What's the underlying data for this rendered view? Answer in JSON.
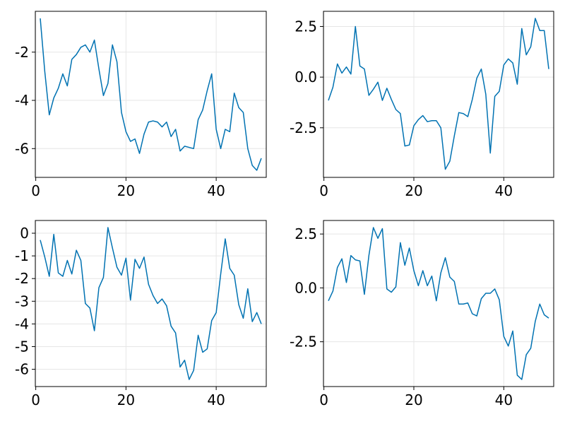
{
  "colors": {
    "line": "#0072b2",
    "grid": "#e6e6e6",
    "frame": "#000000",
    "background": "#ffffff"
  },
  "chart_data": [
    {
      "type": "line",
      "grid": true,
      "xlim": [
        1,
        50
      ],
      "ylim": [
        -6.9,
        -0.6
      ],
      "xticks": [
        0,
        20,
        40
      ],
      "xtick_labels": [
        "0",
        "20",
        "40"
      ],
      "yticks": [
        -2,
        -4,
        -6
      ],
      "ytick_labels": [
        "-2",
        "-4",
        "-6"
      ],
      "x": [
        1,
        2,
        3,
        4,
        5,
        6,
        7,
        8,
        9,
        10,
        11,
        12,
        13,
        14,
        15,
        16,
        17,
        18,
        19,
        20,
        21,
        22,
        23,
        24,
        25,
        26,
        27,
        28,
        29,
        30,
        31,
        32,
        33,
        34,
        35,
        36,
        37,
        38,
        39,
        40,
        41,
        42,
        43,
        44,
        45,
        46,
        47,
        48,
        49,
        50
      ],
      "series": [
        {
          "values": [
            -0.6,
            -2.8,
            -4.6,
            -3.9,
            -3.5,
            -2.9,
            -3.4,
            -2.3,
            -2.1,
            -1.8,
            -1.7,
            -2.0,
            -1.5,
            -2.7,
            -3.8,
            -3.3,
            -1.7,
            -2.4,
            -4.5,
            -5.3,
            -5.7,
            -5.6,
            -6.2,
            -5.4,
            -4.9,
            -4.85,
            -4.9,
            -5.1,
            -4.9,
            -5.5,
            -5.2,
            -6.1,
            -5.9,
            -5.95,
            -6.0,
            -4.8,
            -4.4,
            -3.6,
            -2.9,
            -5.2,
            -6.0,
            -5.2,
            -5.3,
            -3.7,
            -4.3,
            -4.5,
            -6.0,
            -6.7,
            -6.9,
            -6.4
          ]
        }
      ]
    },
    {
      "type": "line",
      "grid": true,
      "xlim": [
        1,
        50
      ],
      "ylim": [
        -4.6,
        2.9
      ],
      "xticks": [
        0,
        20,
        40
      ],
      "xtick_labels": [
        "0",
        "20",
        "40"
      ],
      "yticks": [
        2.5,
        0.0,
        -2.5
      ],
      "ytick_labels": [
        "2.5",
        "0.0",
        "-2.5"
      ],
      "x": [
        1,
        2,
        3,
        4,
        5,
        6,
        7,
        8,
        9,
        10,
        11,
        12,
        13,
        14,
        15,
        16,
        17,
        18,
        19,
        20,
        21,
        22,
        23,
        24,
        25,
        26,
        27,
        28,
        29,
        30,
        31,
        32,
        33,
        34,
        35,
        36,
        37,
        38,
        39,
        40,
        41,
        42,
        43,
        44,
        45,
        46,
        47,
        48,
        49,
        50
      ],
      "series": [
        {
          "values": [
            -1.15,
            -0.5,
            0.65,
            0.2,
            0.5,
            0.15,
            2.5,
            0.55,
            0.4,
            -0.9,
            -0.6,
            -0.25,
            -1.15,
            -0.55,
            -1.1,
            -1.6,
            -1.8,
            -3.4,
            -3.35,
            -2.4,
            -2.1,
            -1.9,
            -2.2,
            -2.15,
            -2.15,
            -2.5,
            -4.55,
            -4.15,
            -2.9,
            -1.75,
            -1.8,
            -1.95,
            -1.1,
            -0.05,
            0.4,
            -0.85,
            -3.75,
            -0.95,
            -0.7,
            0.6,
            0.9,
            0.7,
            -0.35,
            2.4,
            1.1,
            1.5,
            2.9,
            2.3,
            2.3,
            0.4
          ]
        }
      ]
    },
    {
      "type": "line",
      "grid": true,
      "xlim": [
        1,
        50
      ],
      "ylim": [
        -6.45,
        0.25
      ],
      "xticks": [
        0,
        20,
        40
      ],
      "xtick_labels": [
        "0",
        "20",
        "40"
      ],
      "yticks": [
        0,
        -1,
        -2,
        -3,
        -4,
        -5,
        -6
      ],
      "ytick_labels": [
        "0",
        "-1",
        "-2",
        "-3",
        "-4",
        "-5",
        "-6"
      ],
      "x": [
        1,
        2,
        3,
        4,
        5,
        6,
        7,
        8,
        9,
        10,
        11,
        12,
        13,
        14,
        15,
        16,
        17,
        18,
        19,
        20,
        21,
        22,
        23,
        24,
        25,
        26,
        27,
        28,
        29,
        30,
        31,
        32,
        33,
        34,
        35,
        36,
        37,
        38,
        39,
        40,
        41,
        42,
        43,
        44,
        45,
        46,
        47,
        48,
        49,
        50
      ],
      "series": [
        {
          "values": [
            -0.3,
            -1.05,
            -1.9,
            -0.05,
            -1.75,
            -1.9,
            -1.2,
            -1.8,
            -0.75,
            -1.2,
            -3.1,
            -3.3,
            -4.3,
            -2.4,
            -1.95,
            0.25,
            -0.65,
            -1.5,
            -1.85,
            -1.1,
            -2.95,
            -1.15,
            -1.55,
            -1.05,
            -2.25,
            -2.75,
            -3.1,
            -2.9,
            -3.2,
            -4.1,
            -4.4,
            -5.9,
            -5.6,
            -6.45,
            -6.05,
            -4.5,
            -5.25,
            -5.1,
            -3.85,
            -3.5,
            -1.8,
            -0.25,
            -1.55,
            -1.85,
            -3.15,
            -3.75,
            -2.45,
            -3.9,
            -3.5,
            -4.0
          ]
        }
      ]
    },
    {
      "type": "line",
      "grid": true,
      "xlim": [
        1,
        50
      ],
      "ylim": [
        -4.25,
        2.8
      ],
      "xticks": [
        0,
        20,
        40
      ],
      "xtick_labels": [
        "0",
        "20",
        "40"
      ],
      "yticks": [
        2.5,
        0.0,
        -2.5
      ],
      "ytick_labels": [
        "2.5",
        "0.0",
        "-2.5"
      ],
      "x": [
        1,
        2,
        3,
        4,
        5,
        6,
        7,
        8,
        9,
        10,
        11,
        12,
        13,
        14,
        15,
        16,
        17,
        18,
        19,
        20,
        21,
        22,
        23,
        24,
        25,
        26,
        27,
        28,
        29,
        30,
        31,
        32,
        33,
        34,
        35,
        36,
        37,
        38,
        39,
        40,
        41,
        42,
        43,
        44,
        45,
        46,
        47,
        48,
        49,
        50
      ],
      "series": [
        {
          "values": [
            -0.6,
            -0.15,
            0.95,
            1.35,
            0.25,
            1.5,
            1.3,
            1.25,
            -0.3,
            1.5,
            2.8,
            2.3,
            2.75,
            -0.05,
            -0.2,
            0.05,
            2.1,
            1.05,
            1.85,
            0.8,
            0.1,
            0.8,
            0.1,
            0.55,
            -0.6,
            0.7,
            1.4,
            0.5,
            0.3,
            -0.75,
            -0.75,
            -0.7,
            -1.2,
            -1.3,
            -0.5,
            -0.25,
            -0.25,
            -0.05,
            -0.55,
            -2.25,
            -2.7,
            -2.0,
            -4.05,
            -4.25,
            -3.1,
            -2.8,
            -1.55,
            -0.75,
            -1.25,
            -1.4
          ]
        }
      ]
    }
  ]
}
